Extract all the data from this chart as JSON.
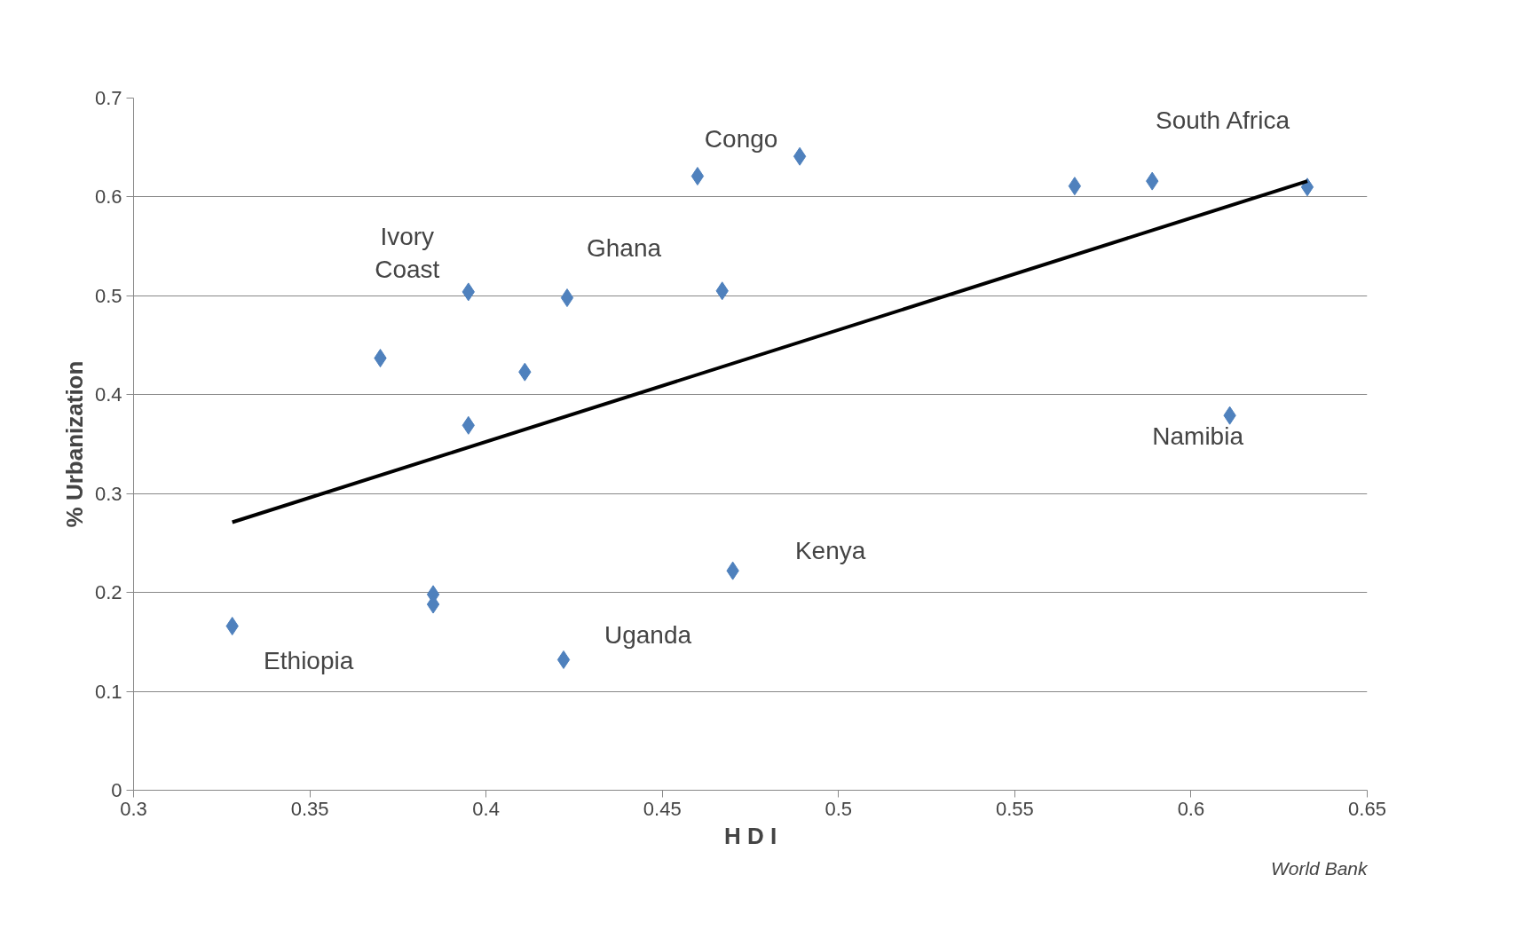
{
  "chart_data": {
    "type": "scatter",
    "xlabel": "H D I",
    "ylabel": "% Urbanization",
    "grid": "y",
    "xlim": [
      0.3,
      0.65
    ],
    "xticks": [
      0.3,
      0.35,
      0.4,
      0.45,
      0.5,
      0.55,
      0.6,
      0.65
    ],
    "ylim": [
      0,
      0.7
    ],
    "yticks": [
      0,
      0.1,
      0.2,
      0.3,
      0.4,
      0.5,
      0.6,
      0.7
    ],
    "series": [
      {
        "marker": "diamond",
        "color": "#4f81bd",
        "x": [
          0.328,
          0.37,
          0.385,
          0.385,
          0.395,
          0.395,
          0.411,
          0.422,
          0.423,
          0.46,
          0.467,
          0.47,
          0.489,
          0.567,
          0.589,
          0.611,
          0.633
        ],
        "values": [
          0.166,
          0.437,
          0.198,
          0.188,
          0.504,
          0.369,
          0.423,
          0.132,
          0.498,
          0.621,
          0.505,
          0.222,
          0.641,
          0.611,
          0.616,
          0.379,
          0.61
        ]
      },
      {
        "type": "line",
        "color": "#000000",
        "x": [
          0.328,
          0.633
        ],
        "values": [
          0.271,
          0.616
        ]
      }
    ],
    "annotations": [
      {
        "text": "Congo",
        "x": 0.489,
        "y": 0.641
      },
      {
        "text": "South Africa",
        "x": 0.589,
        "y": 0.616
      },
      {
        "text": "Ivory\nCoast",
        "x": 0.395,
        "y": 0.504
      },
      {
        "text": "Ghana",
        "x": 0.423,
        "y": 0.498
      },
      {
        "text": "Namibia",
        "x": 0.611,
        "y": 0.379
      },
      {
        "text": "Kenya",
        "x": 0.47,
        "y": 0.222
      },
      {
        "text": "Uganda",
        "x": 0.422,
        "y": 0.132
      },
      {
        "text": "Ethiopia",
        "x": 0.328,
        "y": 0.166
      },
      "World Bank"
    ]
  }
}
